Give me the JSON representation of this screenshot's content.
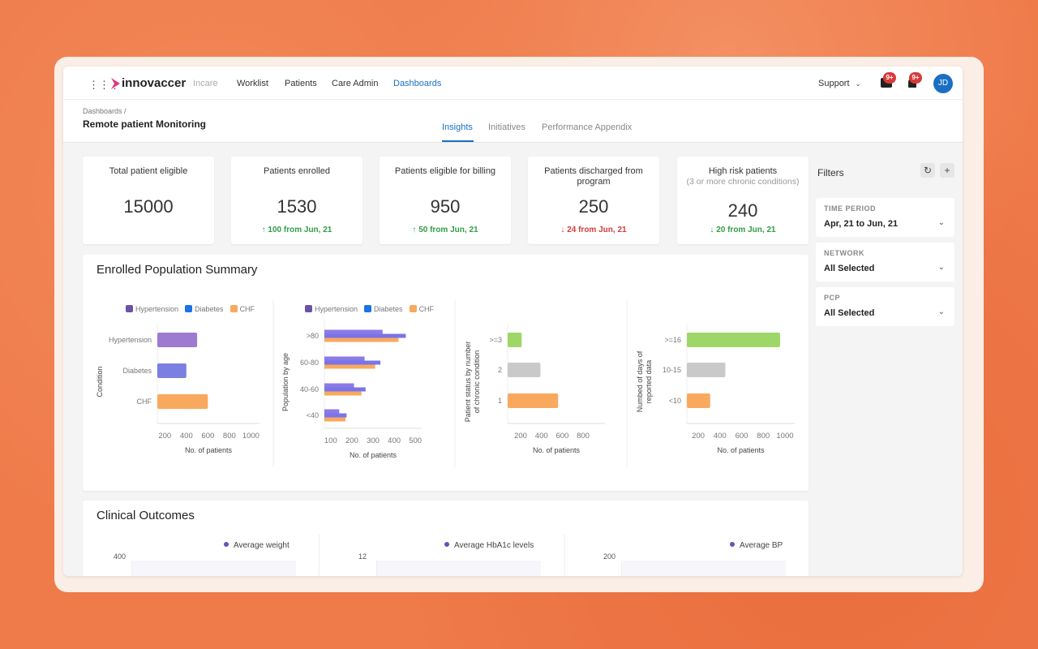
{
  "header": {
    "brand": "innovaccer",
    "product": "Incare",
    "nav": [
      "Worklist",
      "Patients",
      "Care Admin",
      "Dashboards"
    ],
    "active_nav": "Dashboards",
    "support": "Support",
    "messages_badge": "9+",
    "notifications_badge": "9+",
    "avatar": "JD"
  },
  "page": {
    "breadcrumb": "Dashboards /",
    "title": "Remote patient Monitoring",
    "tabs": [
      "Insights",
      "Initiatives",
      "Performance Appendix"
    ],
    "active_tab": "Insights"
  },
  "kpis": [
    {
      "title": "Total patient eligible",
      "subtitle": "",
      "value": "15000",
      "delta": "",
      "trend": ""
    },
    {
      "title": "Patients enrolled",
      "subtitle": "",
      "value": "1530",
      "delta": "100 from Jun, 21",
      "trend": "up"
    },
    {
      "title": "Patients eligible for billing",
      "subtitle": "",
      "value": "950",
      "delta": "50 from Jun, 21",
      "trend": "up"
    },
    {
      "title": "Patients discharged from program",
      "subtitle": "",
      "value": "250",
      "delta": "24 from Jun, 21",
      "trend": "down-bad"
    },
    {
      "title": "High risk patients",
      "subtitle": "(3 or more chronic conditions)",
      "value": "240",
      "delta": "20 from Jun, 21",
      "trend": "down-good"
    }
  ],
  "arrows": {
    "up": "↑",
    "down": "↓"
  },
  "colors": {
    "accent": "#1b6fc2",
    "good": "#2e9e46",
    "bad": "#d23c3c",
    "hypertension": "#9d7bd0",
    "diabetes": "#7b7fe2",
    "chf": "#f9a95e",
    "green": "#9ed767",
    "gray": "#c9c9c9"
  },
  "filters": {
    "title": "Filters",
    "reset_icon": "refresh-icon",
    "add_icon": "plus-icon",
    "items": [
      {
        "label": "TIME PERIOD",
        "value": "Apr, 21 to Jun, 21"
      },
      {
        "label": "NETWORK",
        "value": "All Selected"
      },
      {
        "label": "PCP",
        "value": "All Selected"
      }
    ]
  },
  "enrolled": {
    "title": "Enrolled Population Summary",
    "legend": [
      {
        "name": "Hypertension",
        "color": "#6b52a8"
      },
      {
        "name": "Diabetes",
        "color": "#1a73e8"
      },
      {
        "name": "CHF",
        "color": "#f9a95e"
      }
    ]
  },
  "chart_data": [
    {
      "type": "bar",
      "orientation": "horizontal",
      "categories": [
        "Hypertension",
        "Diabetes",
        "CHF"
      ],
      "values": [
        500,
        400,
        600
      ],
      "colors": [
        "#9d7bd0",
        "#7b7fe2",
        "#f9a95e"
      ],
      "xlabel": "No. of patients",
      "ylabel": "Condition",
      "xticks": [
        200,
        400,
        600,
        800,
        1000
      ],
      "xlim": [
        130,
        1080
      ],
      "legend": "top"
    },
    {
      "type": "bar",
      "orientation": "horizontal",
      "categories": [
        ">80",
        "60-80",
        "40-60",
        "<40"
      ],
      "series": [
        {
          "name": "Hypertension",
          "values": [
            345,
            260,
            210,
            140
          ],
          "color": "#8c7ae6"
        },
        {
          "name": "Diabetes",
          "values": [
            455,
            335,
            265,
            175
          ],
          "color": "#7a74e8"
        },
        {
          "name": "CHF",
          "values": [
            420,
            310,
            245,
            170
          ],
          "color": "#f9a95e"
        }
      ],
      "xlabel": "No. of patients",
      "ylabel": "Population by age",
      "xticks": [
        100,
        200,
        300,
        400,
        500
      ],
      "xlim": [
        70,
        530
      ],
      "legend": "top"
    },
    {
      "type": "bar",
      "orientation": "horizontal",
      "categories": [
        ">=3",
        "2",
        "1"
      ],
      "values": [
        210,
        390,
        560
      ],
      "colors": [
        "#9ed767",
        "#c9c9c9",
        "#f9a95e"
      ],
      "xlabel": "No. of patients",
      "ylabel": "Patient status by number of chronic condition",
      "xticks": [
        200,
        400,
        600,
        800
      ],
      "xlim": [
        75,
        1010
      ]
    },
    {
      "type": "bar",
      "orientation": "horizontal",
      "categories": [
        ">=16",
        "10-15",
        "<10"
      ],
      "values": [
        955,
        450,
        310
      ],
      "colors": [
        "#9ed767",
        "#c9c9c9",
        "#f9a95e"
      ],
      "xlabel": "No. of patients",
      "ylabel": "Numbed of days of reported data",
      "xticks": [
        200,
        400,
        600,
        800,
        1000
      ],
      "xlim": [
        95,
        1090
      ]
    }
  ],
  "clinical": {
    "title": "Clinical Outcomes",
    "charts": [
      {
        "legend": "Average weight",
        "ymax": "400"
      },
      {
        "legend": "Average HbA1c levels",
        "ymax": "12"
      },
      {
        "legend": "Average BP",
        "ymax": "200"
      }
    ]
  }
}
